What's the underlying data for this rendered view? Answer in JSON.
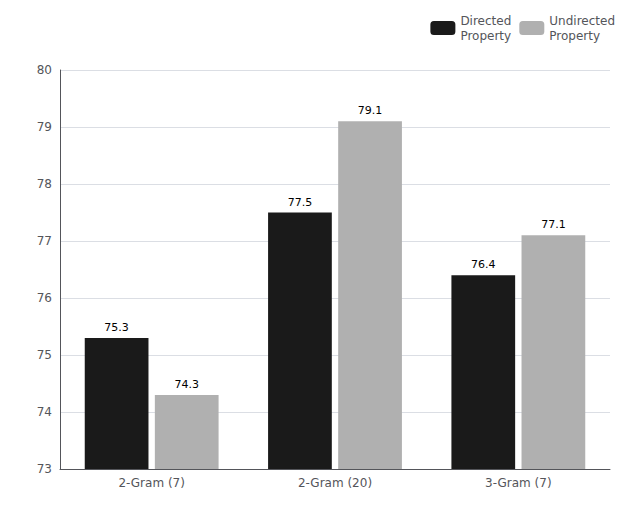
{
  "chart_data": {
    "type": "bar",
    "categories": [
      "2-Gram (7)",
      "2-Gram (20)",
      "3-Gram (7)"
    ],
    "series": [
      {
        "name": "Directed\nProperty",
        "color": "#1a1a1a",
        "values": [
          75.3,
          77.5,
          76.4
        ]
      },
      {
        "name": "Undirected\nProperty",
        "color": "#b0b0b0",
        "values": [
          74.3,
          79.1,
          77.1
        ]
      }
    ],
    "ylim": [
      73,
      80
    ],
    "yticks": [
      73,
      74,
      75,
      76,
      77,
      78,
      79,
      80
    ],
    "grid": true,
    "legend": "upper right",
    "data_labels": true
  }
}
